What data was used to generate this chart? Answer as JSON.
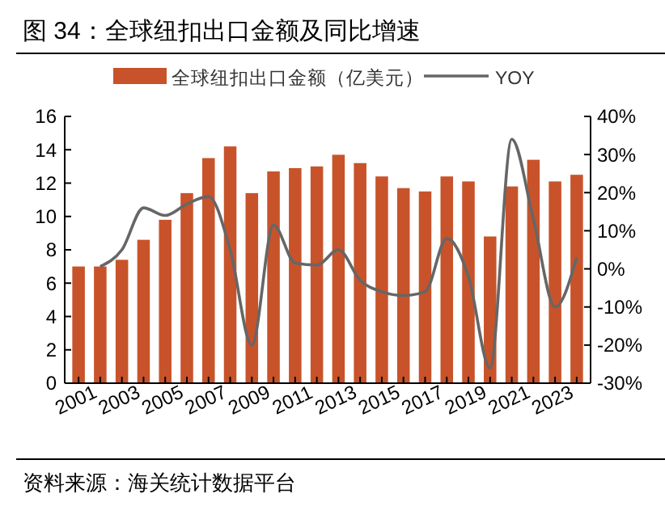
{
  "chart_data": {
    "type": "bar",
    "title": "图 34：全球纽扣出口金额及同比增速",
    "categories": [
      "2001",
      null,
      "2003",
      null,
      "2005",
      null,
      "2007",
      null,
      "2009",
      null,
      "2011",
      null,
      "2013",
      null,
      "2015",
      null,
      "2017",
      null,
      "2019",
      null,
      "2021",
      null,
      "2023",
      null
    ],
    "series": [
      {
        "name": "全球纽扣出口金额（亿美元）",
        "color": "#c8532a",
        "values": [
          7.0,
          7.0,
          7.4,
          8.6,
          9.8,
          11.4,
          13.5,
          14.2,
          11.4,
          12.7,
          12.9,
          13.0,
          13.7,
          13.2,
          12.4,
          11.7,
          11.5,
          12.4,
          12.1,
          8.8,
          11.8,
          13.4,
          12.1,
          12.5
        ]
      },
      {
        "name": "YOY",
        "type": "line",
        "axis": "y2",
        "color": "#666666",
        "values": [
          null,
          0.6,
          5,
          16,
          14,
          17,
          19,
          5,
          -20,
          11.5,
          1.5,
          1,
          5,
          -3,
          -6,
          -7,
          -6,
          8,
          -2,
          -26,
          34,
          13,
          -10,
          3
        ]
      }
    ],
    "ylim": [
      0,
      16
    ],
    "yticks": [
      0,
      2,
      4,
      6,
      8,
      10,
      12,
      14,
      16
    ],
    "y2lim": [
      -30,
      40
    ],
    "y2ticks": [
      {
        "value": -30,
        "label": "-30%"
      },
      {
        "value": -20,
        "label": "-20%"
      },
      {
        "value": -10,
        "label": "-10%"
      },
      {
        "value": 0,
        "label": "0%"
      },
      {
        "value": 10,
        "label": "10%"
      },
      {
        "value": 20,
        "label": "20%"
      },
      {
        "value": 30,
        "label": "30%"
      },
      {
        "value": 40,
        "label": "40%"
      }
    ],
    "legend": "top",
    "grid": false,
    "line_style": "solid",
    "marker": "none",
    "annotations": [
      "资料来源：海关统计数据平台"
    ]
  }
}
